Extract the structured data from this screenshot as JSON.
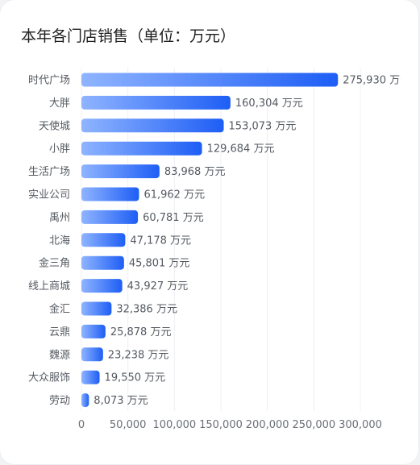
{
  "title": "本年各门店销售（单位：万元）",
  "colors": {
    "bar_start": "#8fb4ff",
    "bar_end": "#1e5ef5",
    "grid": "#eef0f3",
    "text": "#555a61"
  },
  "chart_data": {
    "type": "bar",
    "orientation": "horizontal",
    "title": "本年各门店销售（单位：万元）",
    "value_suffix": " 万元",
    "categories": [
      "时代广场",
      "大胖",
      "天使城",
      "小胖",
      "生活广场",
      "实业公司",
      "禹州",
      "北海",
      "金三角",
      "线上商城",
      "金汇",
      "云鼎",
      "魏源",
      "大众服饰",
      "劳动"
    ],
    "values": [
      275930,
      160304,
      153073,
      129684,
      83968,
      61962,
      60781,
      47178,
      45801,
      43927,
      32386,
      25878,
      23238,
      19550,
      8073
    ],
    "value_labels": [
      "275,930 万元",
      "160,304 万元",
      "153,073 万元",
      "129,684 万元",
      "83,968 万元",
      "61,962 万元",
      "60,781 万元",
      "47,178 万元",
      "45,801 万元",
      "43,927 万元",
      "32,386 万元",
      "25,878 万元",
      "23,238 万元",
      "19,550 万元",
      "8,073 万元"
    ],
    "xlim": [
      0,
      300000
    ],
    "xticks": [
      0,
      50000,
      100000,
      150000,
      200000,
      250000,
      300000
    ],
    "xtick_labels": [
      "0",
      "50,000",
      "100,000",
      "150,000",
      "200,000",
      "250,000",
      "300,000"
    ],
    "grid": true,
    "legend": "none"
  }
}
